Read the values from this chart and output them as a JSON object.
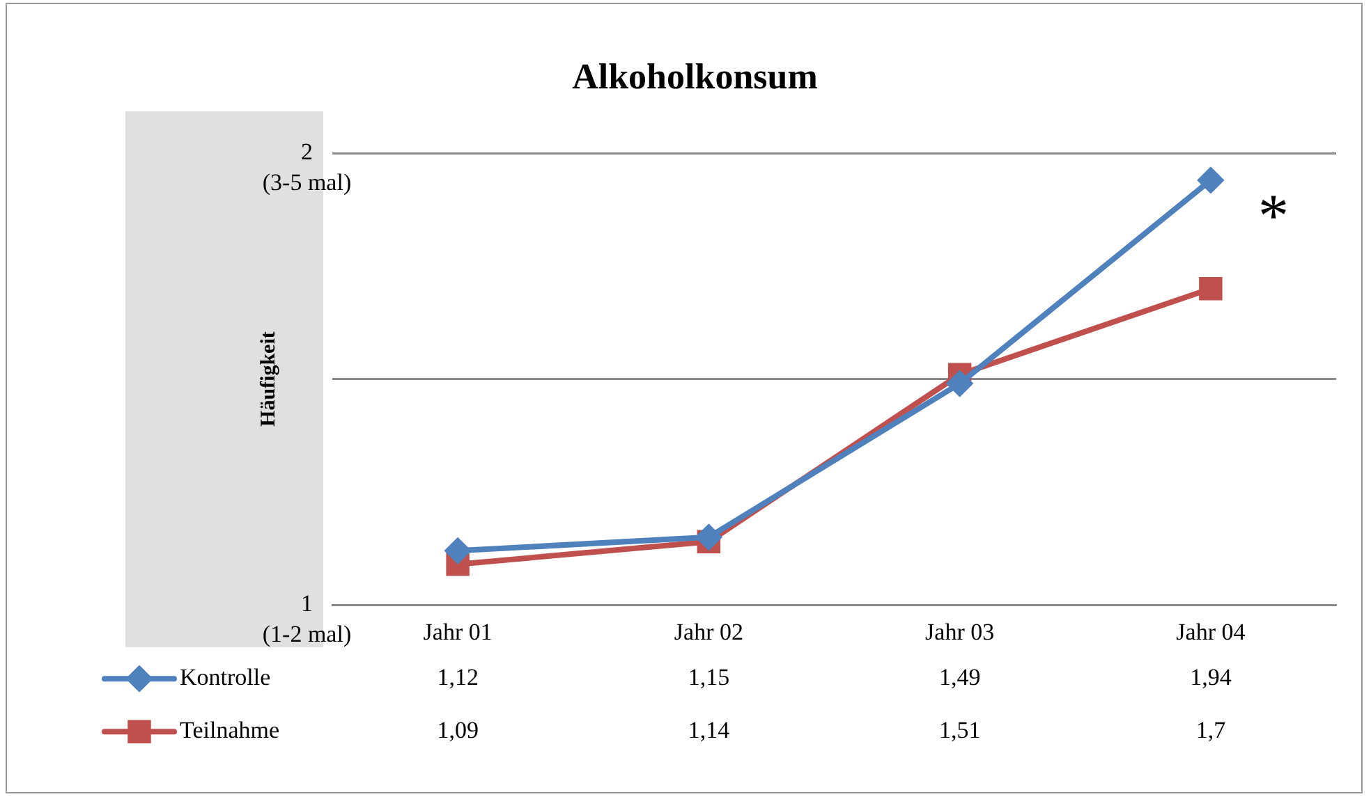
{
  "chart_data": {
    "type": "line",
    "title": "Alkoholkonsum",
    "ylabel": "Häufigkeit",
    "categories": [
      "Jahr 01",
      "Jahr 02",
      "Jahr 03",
      "Jahr 04"
    ],
    "series": [
      {
        "name": "Kontrolle",
        "color": "#4f81bd",
        "marker": "diamond",
        "values": [
          1.12,
          1.15,
          1.49,
          1.94
        ],
        "value_labels": [
          "1,12",
          "1,15",
          "1,49",
          "1,94"
        ]
      },
      {
        "name": "Teilnahme",
        "color": "#c0504d",
        "marker": "square",
        "values": [
          1.09,
          1.14,
          1.51,
          1.7
        ],
        "value_labels": [
          "1,09",
          "1,14",
          "1,51",
          "1,7"
        ]
      }
    ],
    "ylim": [
      1,
      2
    ],
    "yticks": [
      1,
      {
        "value": 1.5,
        "label": null
      },
      2
    ],
    "grid": "y",
    "legend": "bottom",
    "line_style": "solid",
    "annotations": [
      "*",
      "(1-2 mal)",
      "(3-5 mal)"
    ]
  }
}
